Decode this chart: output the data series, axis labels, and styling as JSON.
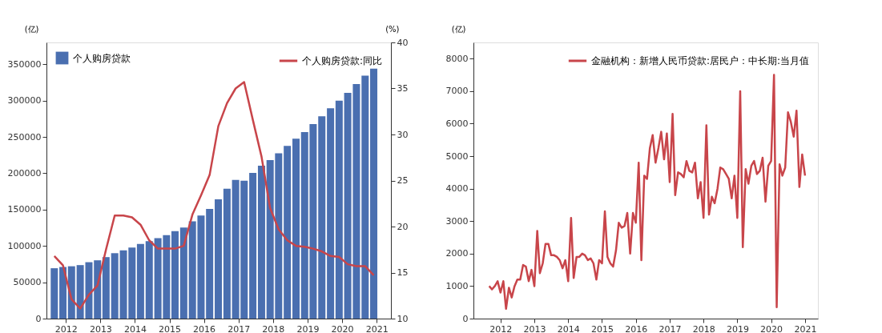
{
  "chart_data": [
    {
      "type": "bar",
      "ylabel": "(亿)",
      "y2label": "(%)",
      "legend": "top",
      "grid": false,
      "x": [
        "2011-09",
        "2011-12",
        "2012-03",
        "2012-06",
        "2012-09",
        "2012-12",
        "2013-03",
        "2013-06",
        "2013-09",
        "2013-12",
        "2014-03",
        "2014-06",
        "2014-09",
        "2014-12",
        "2015-03",
        "2015-06",
        "2015-09",
        "2015-12",
        "2016-03",
        "2016-06",
        "2016-09",
        "2016-12",
        "2017-03",
        "2017-06",
        "2017-09",
        "2017-12",
        "2018-03",
        "2018-06",
        "2018-09",
        "2018-12",
        "2019-03",
        "2019-06",
        "2019-09",
        "2019-12",
        "2020-03",
        "2020-06",
        "2020-09",
        "2020-12"
      ],
      "xlim": [
        "2011-06-10",
        "2021-06"
      ],
      "xticks": [
        {
          "value": "2012",
          "label": "2012"
        },
        {
          "value": "2013",
          "label": "2013"
        },
        {
          "value": "2014",
          "label": "2014"
        },
        {
          "value": "2015",
          "label": "2015"
        },
        {
          "value": "2016",
          "label": "2016"
        },
        {
          "value": "2017",
          "label": "2017"
        },
        {
          "value": "2018",
          "label": "2018"
        },
        {
          "value": "2019",
          "label": "2019"
        },
        {
          "value": "2020",
          "label": "2020"
        },
        {
          "value": "2021",
          "label": "2021"
        }
      ],
      "ylim": [
        0,
        380000
      ],
      "yticks": [
        0,
        50000,
        100000,
        150000,
        200000,
        250000,
        300000,
        350000
      ],
      "y2lim": [
        10,
        40
      ],
      "y2ticks": [
        10,
        15,
        20,
        25,
        30,
        35,
        40
      ],
      "series": [
        {
          "name": "个人购房贷款",
          "type": "bar",
          "color": "#4a6fb0",
          "values": [
            69300,
            71000,
            72000,
            73600,
            77600,
            80200,
            84600,
            90000,
            94000,
            97700,
            102800,
            106500,
            110800,
            114800,
            120300,
            125400,
            133800,
            141800,
            151000,
            164000,
            178600,
            190700,
            189600,
            200500,
            210400,
            218000,
            227500,
            237700,
            247500,
            256700,
            267600,
            278500,
            289500,
            300000,
            310600,
            322600,
            334300,
            343800
          ]
        },
        {
          "name": "个人购房贷款:同比",
          "type": "line",
          "axis": "y2",
          "color": "#c8454a",
          "values": [
            16.8,
            15.8,
            12.1,
            11.1,
            12.6,
            13.6,
            17.5,
            21.2,
            21.2,
            21.0,
            20.2,
            18.5,
            17.6,
            17.6,
            17.6,
            17.9,
            21.3,
            23.4,
            25.6,
            30.9,
            33.4,
            35.0,
            35.7,
            31.6,
            27.6,
            22.0,
            19.7,
            18.5,
            17.9,
            17.8,
            17.6,
            17.3,
            16.8,
            16.7,
            15.9,
            15.7,
            15.7,
            14.7
          ]
        }
      ]
    },
    {
      "type": "line",
      "ylabel": "(亿)",
      "legend": "top right",
      "grid": false,
      "x": [
        "2011-09",
        "2011-10",
        "2011-11",
        "2011-12",
        "2012-01",
        "2012-02",
        "2012-03",
        "2012-04",
        "2012-05",
        "2012-06",
        "2012-07",
        "2012-08",
        "2012-09",
        "2012-10",
        "2012-11",
        "2012-12",
        "2013-01",
        "2013-02",
        "2013-03",
        "2013-04",
        "2013-05",
        "2013-06",
        "2013-07",
        "2013-08",
        "2013-09",
        "2013-10",
        "2013-11",
        "2013-12",
        "2014-01",
        "2014-02",
        "2014-03",
        "2014-04",
        "2014-05",
        "2014-06",
        "2014-07",
        "2014-08",
        "2014-09",
        "2014-10",
        "2014-11",
        "2014-12",
        "2015-01",
        "2015-02",
        "2015-03",
        "2015-04",
        "2015-05",
        "2015-06",
        "2015-07",
        "2015-08",
        "2015-09",
        "2015-10",
        "2015-11",
        "2015-12",
        "2016-01",
        "2016-02",
        "2016-03",
        "2016-04",
        "2016-05",
        "2016-06",
        "2016-07",
        "2016-08",
        "2016-09",
        "2016-10",
        "2016-11",
        "2016-12",
        "2017-01",
        "2017-02",
        "2017-03",
        "2017-04",
        "2017-05",
        "2017-06",
        "2017-07",
        "2017-08",
        "2017-09",
        "2017-10",
        "2017-11",
        "2017-12",
        "2018-01",
        "2018-02",
        "2018-03",
        "2018-04",
        "2018-05",
        "2018-06",
        "2018-07",
        "2018-08",
        "2018-09",
        "2018-10",
        "2018-11",
        "2018-12",
        "2019-01",
        "2019-02",
        "2019-03",
        "2019-04",
        "2019-05",
        "2019-06",
        "2019-07",
        "2019-08",
        "2019-09",
        "2019-10",
        "2019-11",
        "2019-12",
        "2020-01",
        "2020-02",
        "2020-03",
        "2020-04",
        "2020-05",
        "2020-06",
        "2020-07",
        "2020-08",
        "2020-09",
        "2020-10",
        "2020-11",
        "2020-12",
        "2021-01"
      ],
      "xlim": [
        "2011-03-15",
        "2021-05-20"
      ],
      "xticks": [
        {
          "value": "2012",
          "label": "2012"
        },
        {
          "value": "2013",
          "label": "2013"
        },
        {
          "value": "2014",
          "label": "2014"
        },
        {
          "value": "2015",
          "label": "2015"
        },
        {
          "value": "2016",
          "label": "2016"
        },
        {
          "value": "2017",
          "label": "2017"
        },
        {
          "value": "2018",
          "label": "2018"
        },
        {
          "value": "2019",
          "label": "2019"
        },
        {
          "value": "2020",
          "label": "2020"
        },
        {
          "value": "2021",
          "label": "2021"
        }
      ],
      "ylim": [
        0,
        8500
      ],
      "yticks": [
        0,
        1000,
        2000,
        3000,
        4000,
        5000,
        6000,
        7000,
        8000
      ],
      "series": [
        {
          "name": "金融机构：新增人民币贷款:居民户：中长期:当月值",
          "color": "#c8454a",
          "values": [
            1000,
            900,
            1000,
            1150,
            800,
            1150,
            300,
            950,
            650,
            1000,
            1200,
            1200,
            1650,
            1600,
            1150,
            1500,
            1000,
            2700,
            1400,
            1700,
            2300,
            2300,
            1950,
            1950,
            1900,
            1800,
            1550,
            1800,
            1150,
            3100,
            1250,
            1900,
            1900,
            2000,
            1950,
            1800,
            1850,
            1700,
            1200,
            1800,
            1700,
            3300,
            1900,
            1700,
            1600,
            2100,
            2950,
            2800,
            2850,
            3250,
            2000,
            3250,
            2950,
            4800,
            1800,
            4400,
            4300,
            5250,
            5650,
            4800,
            5250,
            5750,
            4900,
            5700,
            4200,
            6300,
            3800,
            4500,
            4450,
            4350,
            4850,
            4550,
            4500,
            4800,
            3700,
            4200,
            3100,
            5950,
            3200,
            3750,
            3550,
            4000,
            4650,
            4600,
            4450,
            4300,
            3700,
            4400,
            3100,
            7000,
            2200,
            4600,
            4150,
            4700,
            4850,
            4450,
            4550,
            4950,
            3600,
            4700,
            4850,
            7500,
            350,
            4750,
            4400,
            4650,
            6350,
            6050,
            5600,
            6400,
            4050,
            5050,
            4400
          ]
        }
      ]
    }
  ]
}
